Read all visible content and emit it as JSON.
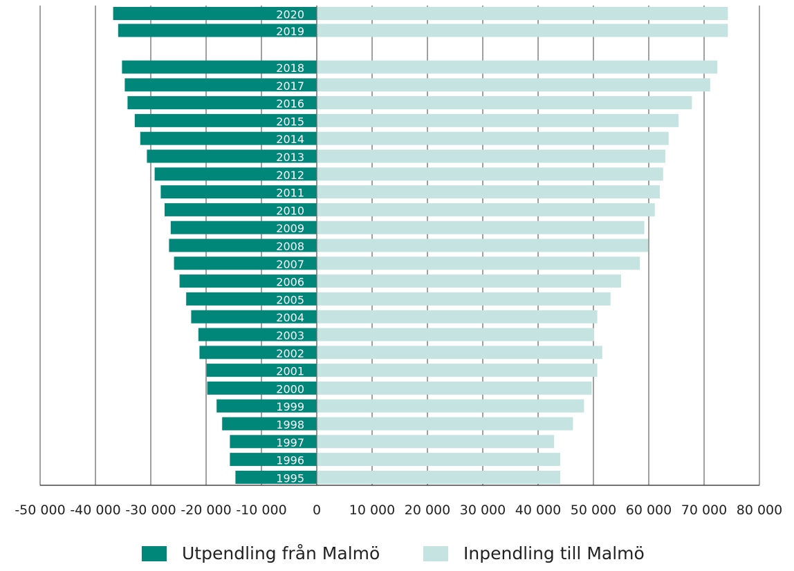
{
  "chart_data": {
    "type": "bar",
    "orientation": "horizontal",
    "stacking": "diverging",
    "title": "",
    "xlabel": "",
    "ylabel": "",
    "xlim": [
      -50000,
      80000
    ],
    "x_ticks": [
      -50000,
      -40000,
      -30000,
      -20000,
      -10000,
      0,
      10000,
      20000,
      30000,
      40000,
      50000,
      60000,
      70000,
      80000
    ],
    "x_tick_labels": [
      "-50 000",
      "-40 000",
      "-30 000",
      "-20 000",
      "-10 000",
      "0",
      "10 000",
      "20 000",
      "30 000",
      "40 000",
      "50 000",
      "60 000",
      "70 000",
      "80 000"
    ],
    "grid": "vertical",
    "legend_position": "bottom",
    "categories": [
      "2020",
      "2019",
      "2018",
      "2017",
      "2016",
      "2015",
      "2014",
      "2013",
      "2012",
      "2011",
      "2010",
      "2009",
      "2008",
      "2007",
      "2006",
      "2005",
      "2004",
      "2003",
      "2002",
      "2001",
      "2000",
      "1999",
      "1998",
      "1997",
      "1996",
      "1995"
    ],
    "series": [
      {
        "name": "Utpendling från Malmö",
        "color": "#00877a",
        "values": [
          -36800,
          -35900,
          -35200,
          -34700,
          -34200,
          -32900,
          -31900,
          -30700,
          -29300,
          -28200,
          -27500,
          -26400,
          -26700,
          -25800,
          -24800,
          -23600,
          -22700,
          -21400,
          -21200,
          -19900,
          -19800,
          -18100,
          -17100,
          -15700,
          -15700,
          -14700
        ]
      },
      {
        "name": "Inpendling till Malmö",
        "color": "#c5e4e1",
        "values": [
          74300,
          74300,
          72400,
          71100,
          67800,
          65400,
          63600,
          63000,
          62600,
          62000,
          61100,
          59200,
          59900,
          58400,
          55000,
          53100,
          50700,
          50100,
          51600,
          50700,
          49700,
          48300,
          46300,
          42900,
          44000,
          44000
        ]
      }
    ]
  }
}
